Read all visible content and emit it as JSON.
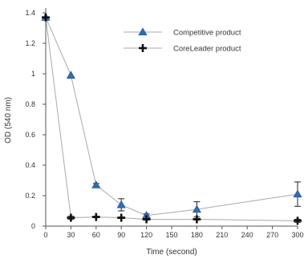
{
  "chart_data": {
    "type": "line",
    "xlabel": "Time (second)",
    "ylabel": "OD (540 nm)",
    "xlim": [
      0,
      300
    ],
    "ylim": [
      0,
      1.4
    ],
    "xticks": [
      "0",
      "30",
      "60",
      "90",
      "120",
      "150",
      "180",
      "210",
      "240",
      "270",
      "300"
    ],
    "yticks": [
      "0",
      "0.2",
      "0.4",
      "0.6",
      "0.8",
      "1",
      "1.2",
      "1.4"
    ],
    "grid": false,
    "legend_position": "top-right",
    "series": [
      {
        "name": "Competitive product",
        "marker": "triangle",
        "color": "#2e6db4",
        "line_color": "#a9a9a9",
        "x": [
          0,
          30,
          60,
          90,
          120,
          180,
          300
        ],
        "y": [
          1.37,
          0.99,
          0.27,
          0.14,
          0.07,
          0.11,
          0.21
        ],
        "error": [
          0,
          0,
          0.01,
          0.04,
          0.01,
          0.05,
          0.08
        ]
      },
      {
        "name": "CoreLeader product",
        "marker": "plus",
        "color": "#111111",
        "line_color": "#a9a9a9",
        "x": [
          0,
          30,
          60,
          90,
          120,
          180,
          300
        ],
        "y": [
          1.37,
          0.055,
          0.06,
          0.055,
          0.045,
          0.045,
          0.035
        ],
        "error": [
          0,
          0.01,
          0.005,
          0.005,
          0.005,
          0.005,
          0.01
        ]
      }
    ]
  }
}
